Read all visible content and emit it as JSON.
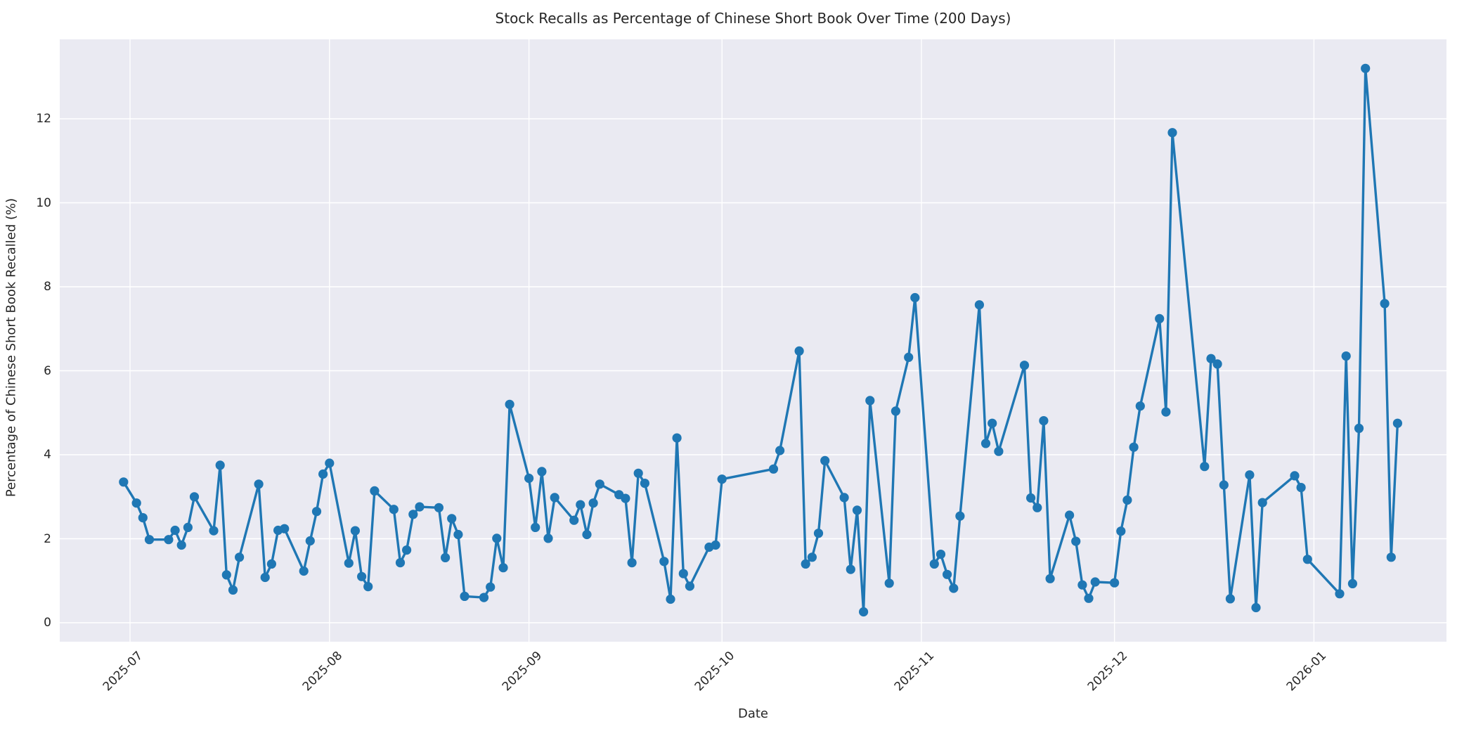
{
  "chart_data": {
    "type": "line",
    "title": "Stock Recalls as Percentage of Chinese Short Book Over Time (200 Days)",
    "xlabel": "Date",
    "ylabel": "Percentage of Chinese Short Book Recalled (%)",
    "legend": false,
    "grid": true,
    "line_color": "#1f77b4",
    "marker": "o",
    "background_color": "#eaeaf2",
    "grid_color": "#ffffff",
    "text_color": "#262626",
    "ylim": [
      -0.45,
      13.9
    ],
    "yticks": [
      0,
      2,
      4,
      6,
      8,
      10,
      12
    ],
    "xticks": [
      {
        "label": "2025-07",
        "date": "2025-07-01"
      },
      {
        "label": "2025-08",
        "date": "2025-08-01"
      },
      {
        "label": "2025-09",
        "date": "2025-09-01"
      },
      {
        "label": "2025-10",
        "date": "2025-10-01"
      },
      {
        "label": "2025-11",
        "date": "2025-11-01"
      },
      {
        "label": "2025-12",
        "date": "2025-12-01"
      },
      {
        "label": "2026-01",
        "date": "2026-01-01"
      }
    ],
    "series": [
      {
        "name": "recall_percentage",
        "points": [
          [
            "2025-06-30",
            3.35
          ],
          [
            "2025-07-02",
            2.85
          ],
          [
            "2025-07-03",
            2.5
          ],
          [
            "2025-07-04",
            1.98
          ],
          [
            "2025-07-07",
            1.98
          ],
          [
            "2025-07-08",
            2.2
          ],
          [
            "2025-07-09",
            1.85
          ],
          [
            "2025-07-10",
            2.27
          ],
          [
            "2025-07-11",
            3.0
          ],
          [
            "2025-07-14",
            2.19
          ],
          [
            "2025-07-15",
            3.75
          ],
          [
            "2025-07-16",
            1.14
          ],
          [
            "2025-07-17",
            0.78
          ],
          [
            "2025-07-18",
            1.56
          ],
          [
            "2025-07-21",
            3.3
          ],
          [
            "2025-07-22",
            1.08
          ],
          [
            "2025-07-23",
            1.4
          ],
          [
            "2025-07-24",
            2.2
          ],
          [
            "2025-07-25",
            2.24
          ],
          [
            "2025-07-28",
            1.23
          ],
          [
            "2025-07-29",
            1.95
          ],
          [
            "2025-07-30",
            2.65
          ],
          [
            "2025-07-31",
            3.54
          ],
          [
            "2025-08-01",
            3.8
          ],
          [
            "2025-08-04",
            1.42
          ],
          [
            "2025-08-05",
            2.19
          ],
          [
            "2025-08-06",
            1.1
          ],
          [
            "2025-08-07",
            0.86
          ],
          [
            "2025-08-08",
            3.14
          ],
          [
            "2025-08-11",
            2.7
          ],
          [
            "2025-08-12",
            1.43
          ],
          [
            "2025-08-13",
            1.73
          ],
          [
            "2025-08-14",
            2.58
          ],
          [
            "2025-08-15",
            2.76
          ],
          [
            "2025-08-18",
            2.74
          ],
          [
            "2025-08-19",
            1.55
          ],
          [
            "2025-08-20",
            2.48
          ],
          [
            "2025-08-21",
            2.1
          ],
          [
            "2025-08-22",
            0.63
          ],
          [
            "2025-08-25",
            0.6
          ],
          [
            "2025-08-26",
            0.85
          ],
          [
            "2025-08-27",
            2.01
          ],
          [
            "2025-08-28",
            1.31
          ],
          [
            "2025-08-29",
            5.2
          ],
          [
            "2025-09-01",
            3.44
          ],
          [
            "2025-09-02",
            2.27
          ],
          [
            "2025-09-03",
            3.6
          ],
          [
            "2025-09-04",
            2.01
          ],
          [
            "2025-09-05",
            2.98
          ],
          [
            "2025-09-08",
            2.44
          ],
          [
            "2025-09-09",
            2.81
          ],
          [
            "2025-09-10",
            2.1
          ],
          [
            "2025-09-11",
            2.85
          ],
          [
            "2025-09-12",
            3.3
          ],
          [
            "2025-09-15",
            3.05
          ],
          [
            "2025-09-16",
            2.96
          ],
          [
            "2025-09-17",
            1.43
          ],
          [
            "2025-09-18",
            3.56
          ],
          [
            "2025-09-19",
            3.32
          ],
          [
            "2025-09-22",
            1.46
          ],
          [
            "2025-09-23",
            0.56
          ],
          [
            "2025-09-24",
            4.4
          ],
          [
            "2025-09-25",
            1.17
          ],
          [
            "2025-09-26",
            0.87
          ],
          [
            "2025-09-29",
            1.8
          ],
          [
            "2025-09-30",
            1.85
          ],
          [
            "2025-10-01",
            3.42
          ],
          [
            "2025-10-09",
            3.66
          ],
          [
            "2025-10-10",
            4.1
          ],
          [
            "2025-10-13",
            6.47
          ],
          [
            "2025-10-14",
            1.4
          ],
          [
            "2025-10-15",
            1.56
          ],
          [
            "2025-10-16",
            2.13
          ],
          [
            "2025-10-17",
            3.86
          ],
          [
            "2025-10-20",
            2.98
          ],
          [
            "2025-10-21",
            1.27
          ],
          [
            "2025-10-22",
            2.68
          ],
          [
            "2025-10-23",
            0.26
          ],
          [
            "2025-10-24",
            5.29
          ],
          [
            "2025-10-27",
            0.94
          ],
          [
            "2025-10-28",
            5.04
          ],
          [
            "2025-10-30",
            6.32
          ],
          [
            "2025-10-31",
            7.74
          ],
          [
            "2025-11-03",
            1.4
          ],
          [
            "2025-11-04",
            1.63
          ],
          [
            "2025-11-05",
            1.15
          ],
          [
            "2025-11-06",
            0.82
          ],
          [
            "2025-11-07",
            2.54
          ],
          [
            "2025-11-10",
            7.57
          ],
          [
            "2025-11-11",
            4.27
          ],
          [
            "2025-11-12",
            4.75
          ],
          [
            "2025-11-13",
            4.08
          ],
          [
            "2025-11-17",
            6.13
          ],
          [
            "2025-11-18",
            2.97
          ],
          [
            "2025-11-19",
            2.74
          ],
          [
            "2025-11-20",
            4.81
          ],
          [
            "2025-11-21",
            1.05
          ],
          [
            "2025-11-24",
            2.56
          ],
          [
            "2025-11-25",
            1.94
          ],
          [
            "2025-11-26",
            0.9
          ],
          [
            "2025-11-27",
            0.58
          ],
          [
            "2025-11-28",
            0.97
          ],
          [
            "2025-12-01",
            0.95
          ],
          [
            "2025-12-02",
            2.18
          ],
          [
            "2025-12-03",
            2.92
          ],
          [
            "2025-12-04",
            4.18
          ],
          [
            "2025-12-05",
            5.16
          ],
          [
            "2025-12-08",
            7.24
          ],
          [
            "2025-12-09",
            5.02
          ],
          [
            "2025-12-10",
            11.67
          ],
          [
            "2025-12-15",
            3.72
          ],
          [
            "2025-12-16",
            6.29
          ],
          [
            "2025-12-17",
            6.16
          ],
          [
            "2025-12-18",
            3.28
          ],
          [
            "2025-12-19",
            0.57
          ],
          [
            "2025-12-22",
            3.52
          ],
          [
            "2025-12-23",
            0.36
          ],
          [
            "2025-12-24",
            2.86
          ],
          [
            "2025-12-29",
            3.5
          ],
          [
            "2025-12-30",
            3.22
          ],
          [
            "2025-12-31",
            1.51
          ],
          [
            "2026-01-05",
            0.69
          ],
          [
            "2026-01-06",
            6.35
          ],
          [
            "2026-01-07",
            0.93
          ],
          [
            "2026-01-08",
            4.63
          ],
          [
            "2026-01-09",
            13.2
          ],
          [
            "2026-01-12",
            7.6
          ],
          [
            "2026-01-13",
            1.56
          ],
          [
            "2026-01-14",
            4.75
          ]
        ]
      }
    ]
  }
}
